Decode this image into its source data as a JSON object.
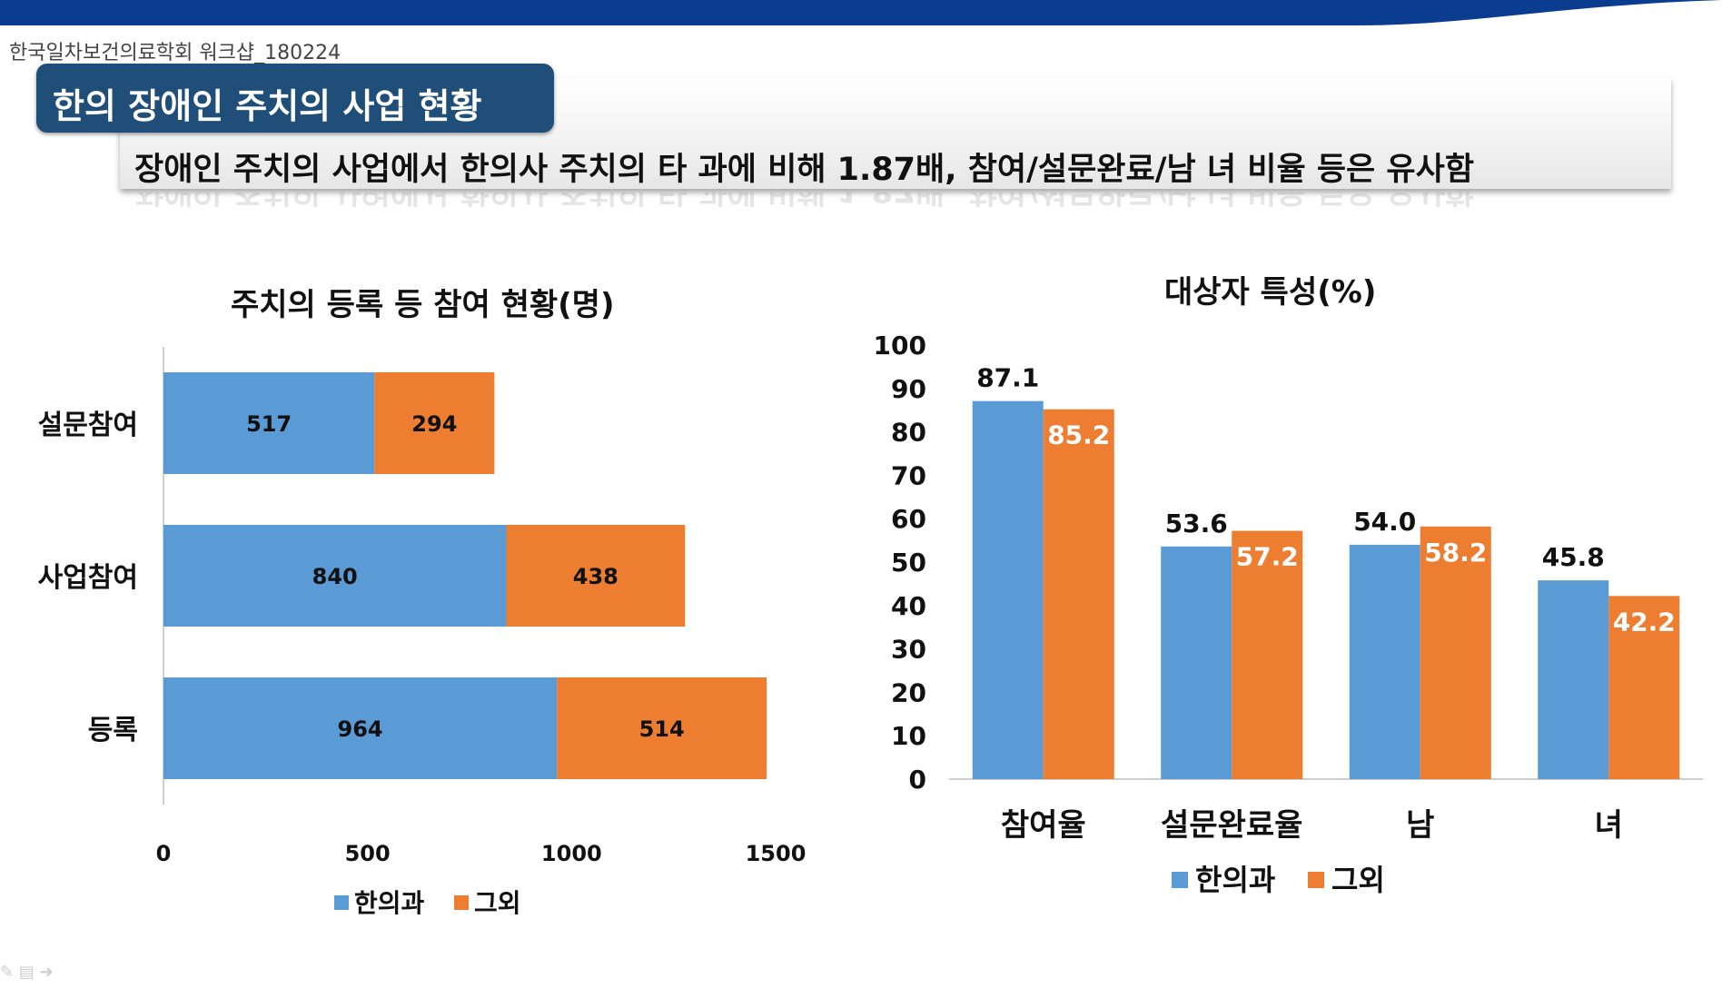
{
  "header": {
    "workshop_label": "한국일차보건의료학회 워크샵_180224",
    "slide_title": "한의 장애인 주치의 사업 현황",
    "subtitle": "장애인 주치의 사업에서 한의사 주치의 타 과에 비해 1.87배, 참여/설문완료/남 녀 비율 등은 유사함"
  },
  "colors": {
    "series1": "#5b9bd5",
    "series2": "#ed7d31",
    "title_bg": "#1f4e79",
    "topbar": "#0a3d8f"
  },
  "chart_data": [
    {
      "type": "bar",
      "orientation": "horizontal",
      "stacked": true,
      "title": "주치의 등록 등 참여 현황(명)",
      "categories": [
        "설문참여",
        "사업참여",
        "등록"
      ],
      "series": [
        {
          "name": "한의과",
          "values": [
            517,
            840,
            964
          ]
        },
        {
          "name": "그외",
          "values": [
            294,
            438,
            514
          ]
        }
      ],
      "xlim": [
        0,
        1500
      ],
      "xticks": [
        "0",
        "500",
        "1000",
        "1500"
      ],
      "legend": "bottom"
    },
    {
      "type": "bar",
      "orientation": "vertical",
      "stacked": false,
      "title": "대상자 특성(%)",
      "categories": [
        "참여율",
        "설문완료율",
        "남",
        "녀"
      ],
      "series": [
        {
          "name": "한의과",
          "values": [
            87.1,
            53.6,
            54.0,
            45.8
          ]
        },
        {
          "name": "그외",
          "values": [
            85.2,
            57.2,
            58.2,
            42.2
          ]
        }
      ],
      "ylim": [
        0,
        100
      ],
      "yticks": [
        "0",
        "10",
        "20",
        "30",
        "40",
        "50",
        "60",
        "70",
        "80",
        "90",
        "100"
      ],
      "legend": "bottom"
    }
  ]
}
